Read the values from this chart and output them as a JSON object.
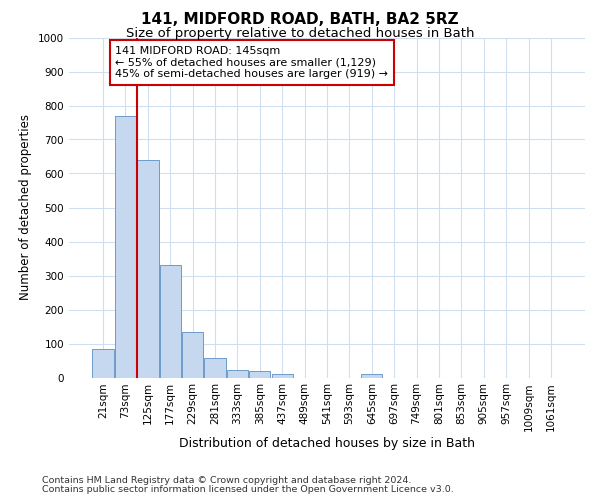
{
  "title": "141, MIDFORD ROAD, BATH, BA2 5RZ",
  "subtitle": "Size of property relative to detached houses in Bath",
  "xlabel": "Distribution of detached houses by size in Bath",
  "ylabel": "Number of detached properties",
  "footnote1": "Contains HM Land Registry data © Crown copyright and database right 2024.",
  "footnote2": "Contains public sector information licensed under the Open Government Licence v3.0.",
  "categories": [
    "21sqm",
    "73sqm",
    "125sqm",
    "177sqm",
    "229sqm",
    "281sqm",
    "333sqm",
    "385sqm",
    "437sqm",
    "489sqm",
    "541sqm",
    "593sqm",
    "645sqm",
    "697sqm",
    "749sqm",
    "801sqm",
    "853sqm",
    "905sqm",
    "957sqm",
    "1009sqm",
    "1061sqm"
  ],
  "values": [
    85,
    770,
    640,
    330,
    133,
    58,
    22,
    18,
    10,
    0,
    0,
    0,
    10,
    0,
    0,
    0,
    0,
    0,
    0,
    0,
    0
  ],
  "bar_color": "#c5d8ef",
  "bar_edgecolor": "#5b8ec4",
  "grid_color": "#d0dff0",
  "vline_color": "#cc0000",
  "vline_x_index": 2,
  "annotation_text": "141 MIDFORD ROAD: 145sqm\n← 55% of detached houses are smaller (1,129)\n45% of semi-detached houses are larger (919) →",
  "annotation_box_edgecolor": "#cc0000",
  "annotation_box_facecolor": "#ffffff",
  "ylim": [
    0,
    1000
  ],
  "yticks": [
    0,
    100,
    200,
    300,
    400,
    500,
    600,
    700,
    800,
    900,
    1000
  ],
  "title_fontsize": 11,
  "subtitle_fontsize": 9.5,
  "xlabel_fontsize": 9,
  "ylabel_fontsize": 8.5,
  "tick_fontsize": 7.5,
  "annotation_fontsize": 8,
  "footnote_fontsize": 6.8
}
